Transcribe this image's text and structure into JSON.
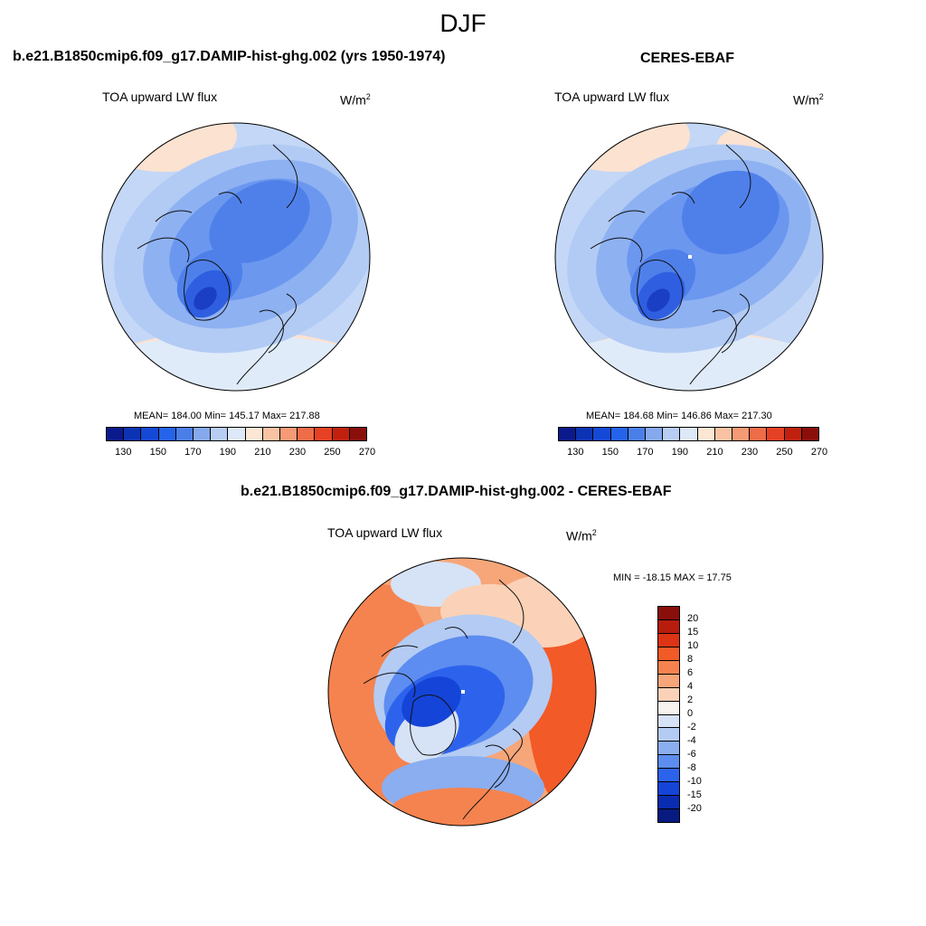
{
  "title": "DJF",
  "panels": [
    {
      "title": "b.e21.B1850cmip6.f09_g17.DAMIP-hist-ghg.002 (yrs 1950-1974)",
      "left_label": "TOA upward LW flux",
      "units": "W/m",
      "units_sup": "2",
      "stats": "MEAN= 184.00  Min= 145.17  Max= 217.88"
    },
    {
      "title": "CERES-EBAF",
      "left_label": "TOA upward LW flux",
      "units": "W/m",
      "units_sup": "2",
      "stats": "MEAN= 184.68  Min= 146.86  Max= 217.30"
    },
    {
      "title": "b.e21.B1850cmip6.f09_g17.DAMIP-hist-ghg.002 - CERES-EBAF",
      "left_label": "TOA upward LW flux",
      "units": "W/m",
      "units_sup": "2",
      "stats": "MIN = -18.15 MAX =  17.75"
    }
  ],
  "colorbar_abs": {
    "colors": [
      "#0a1a8c",
      "#0d33b5",
      "#1449d6",
      "#2563eb",
      "#4b7fe8",
      "#86a9ee",
      "#b7cdf3",
      "#dde8f8",
      "#fde6d4",
      "#f9c3a3",
      "#f59a75",
      "#ef6c48",
      "#e64124",
      "#c2200f",
      "#8a0f0a"
    ],
    "ticks": [
      "130",
      "150",
      "170",
      "190",
      "210",
      "230",
      "250",
      "270"
    ]
  },
  "colorbar_diff": {
    "colors": [
      "#8a0f0a",
      "#b71c0d",
      "#dc3414",
      "#f25a28",
      "#f5834f",
      "#f6a679",
      "#fbd2b7",
      "#f7f3ef",
      "#d6e2f6",
      "#b4cbf3",
      "#8aaef0",
      "#5d8df0",
      "#2d63ec",
      "#1444d8",
      "#0a2cb0",
      "#071a80"
    ],
    "ticks": [
      "20",
      "15",
      "10",
      "8",
      "6",
      "4",
      "2",
      "0",
      "-2",
      "-4",
      "-6",
      "-8",
      "-10",
      "-15",
      "-20"
    ]
  },
  "map_colors": {
    "deep": "#1f4fd6",
    "dark": "#3a6ce8",
    "mid": "#5b8df0",
    "light": "#8eb1f2",
    "pale": "#c4d7f6",
    "paler": "#e0ebfa",
    "warm1": "#fce2d0",
    "warm2": "#f7b895",
    "warm3": "#f2895e",
    "warm4": "#e95a2e",
    "coast": "#111111"
  }
}
